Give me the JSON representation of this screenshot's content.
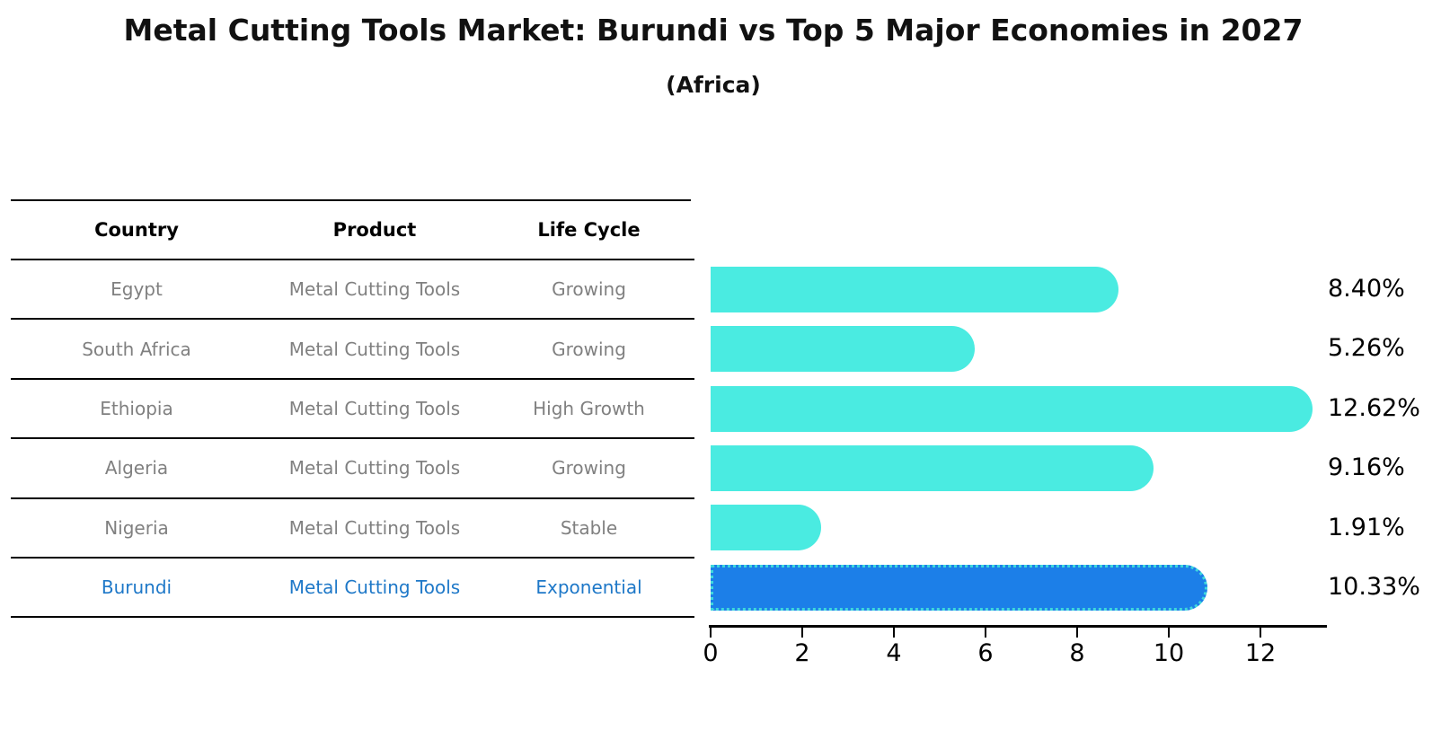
{
  "title": "Metal Cutting Tools Market: Burundi vs Top 5 Major Economies in 2027",
  "subtitle": "(Africa)",
  "table": {
    "headers": [
      "Country",
      "Product",
      "Life Cycle"
    ],
    "rows": [
      {
        "country": "Egypt",
        "product": "Metal Cutting Tools",
        "life_cycle": "Growing",
        "highlight": false
      },
      {
        "country": "South Africa",
        "product": "Metal Cutting Tools",
        "life_cycle": "Growing",
        "highlight": false
      },
      {
        "country": "Ethiopia",
        "product": "Metal Cutting Tools",
        "life_cycle": "High Growth",
        "highlight": false
      },
      {
        "country": "Algeria",
        "product": "Metal Cutting Tools",
        "life_cycle": "Growing",
        "highlight": false
      },
      {
        "country": "Nigeria",
        "product": "Metal Cutting Tools",
        "life_cycle": "Stable",
        "highlight": false
      },
      {
        "country": "Burundi",
        "product": "Metal Cutting Tools",
        "life_cycle": "Exponential",
        "highlight": true
      }
    ]
  },
  "chart_data": {
    "type": "bar",
    "orientation": "horizontal",
    "title": "Metal Cutting Tools Market: Burundi vs Top 5 Major Economies in 2027 (Africa)",
    "categories": [
      "Egypt",
      "South Africa",
      "Ethiopia",
      "Algeria",
      "Nigeria",
      "Burundi"
    ],
    "values": [
      8.4,
      5.26,
      12.62,
      9.16,
      1.91,
      10.33
    ],
    "value_labels": [
      "8.40%",
      "5.26%",
      "12.62%",
      "9.16%",
      "1.91%",
      "10.33%"
    ],
    "highlight_index": 5,
    "x_ticks": [
      0,
      2,
      4,
      6,
      8,
      10,
      12
    ],
    "x_tick_labels": [
      "0",
      "2",
      "4",
      "6",
      "8",
      "10",
      "12"
    ],
    "xlim": [
      0,
      13.4
    ],
    "xlabel": "",
    "ylabel": "",
    "grid": false,
    "legend": false
  },
  "colors": {
    "bar": "#4AEBE1",
    "highlight_bar": "#1C7FE8",
    "highlight_border": "#3FD8DC",
    "highlight_text": "#1E78C8",
    "row_text": "#808080",
    "text": "#000000"
  }
}
